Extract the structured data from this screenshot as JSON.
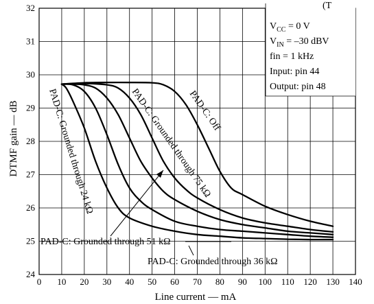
{
  "chart_data": {
    "type": "line",
    "title": "",
    "xlabel": "Line current — mA",
    "ylabel": "DTMF gain — dB",
    "xlim": [
      0,
      140
    ],
    "ylim": [
      24,
      32
    ],
    "x_ticks": [
      "0",
      "10",
      "20",
      "30",
      "40",
      "50",
      "60",
      "70",
      "80",
      "90",
      "100",
      "110",
      "120",
      "130",
      "140"
    ],
    "y_ticks": [
      "24",
      "25",
      "26",
      "27",
      "28",
      "29",
      "30",
      "31",
      "32"
    ],
    "grid": true,
    "conditions": {
      "vcc": {
        "prefix": "V",
        "sub": "CC",
        "rest": " = 0 V"
      },
      "vin": {
        "prefix": "V",
        "sub": "IN",
        "rest": " = –30 dBV"
      },
      "fin": "fin = 1 kHz",
      "input": "Input: pin 44",
      "output": "Output: pin 48",
      "top_cut": "(T"
    },
    "series": [
      {
        "name": "PAD-C: Grounded through 24 kΩ",
        "x": [
          10,
          12,
          15,
          20,
          25,
          30,
          35,
          40,
          50,
          60,
          70,
          80,
          90,
          100,
          110,
          120,
          130
        ],
        "y": [
          29.72,
          29.6,
          29.2,
          28.4,
          27.4,
          26.6,
          26.0,
          25.7,
          25.45,
          25.3,
          25.2,
          25.15,
          25.1,
          25.08,
          25.06,
          25.05,
          25.05
        ]
      },
      {
        "name": "PAD-C: Grounded through 36 kΩ",
        "x": [
          10,
          15,
          20,
          25,
          30,
          35,
          40,
          45,
          50,
          60,
          70,
          80,
          90,
          100,
          110,
          120,
          130
        ],
        "y": [
          29.72,
          29.7,
          29.5,
          29.0,
          28.2,
          27.3,
          26.6,
          26.2,
          25.95,
          25.6,
          25.45,
          25.35,
          25.3,
          25.25,
          25.2,
          25.15,
          25.12
        ]
      },
      {
        "name": "PAD-C: Grounded through 51 kΩ",
        "x": [
          10,
          15,
          20,
          25,
          30,
          35,
          40,
          45,
          50,
          55,
          60,
          70,
          80,
          90,
          100,
          110,
          120,
          130
        ],
        "y": [
          29.72,
          29.72,
          29.7,
          29.6,
          29.3,
          28.8,
          28.1,
          27.4,
          26.9,
          26.5,
          26.25,
          25.9,
          25.65,
          25.5,
          25.4,
          25.3,
          25.25,
          25.2
        ]
      },
      {
        "name": "PAD-C: Grounded through 75 kΩ",
        "x": [
          10,
          20,
          30,
          35,
          40,
          45,
          50,
          55,
          60,
          65,
          70,
          80,
          90,
          100,
          110,
          120,
          130
        ],
        "y": [
          29.72,
          29.74,
          29.7,
          29.6,
          29.3,
          28.8,
          28.1,
          27.4,
          26.9,
          26.55,
          26.3,
          25.95,
          25.7,
          25.55,
          25.45,
          25.35,
          25.28
        ]
      },
      {
        "name": "PAD-C: Off",
        "x": [
          10,
          20,
          30,
          40,
          50,
          55,
          60,
          65,
          70,
          75,
          80,
          85,
          90,
          100,
          110,
          120,
          130
        ],
        "y": [
          29.72,
          29.76,
          29.77,
          29.77,
          29.76,
          29.7,
          29.5,
          29.1,
          28.5,
          27.8,
          27.1,
          26.6,
          26.4,
          26.05,
          25.8,
          25.6,
          25.45
        ]
      }
    ]
  }
}
